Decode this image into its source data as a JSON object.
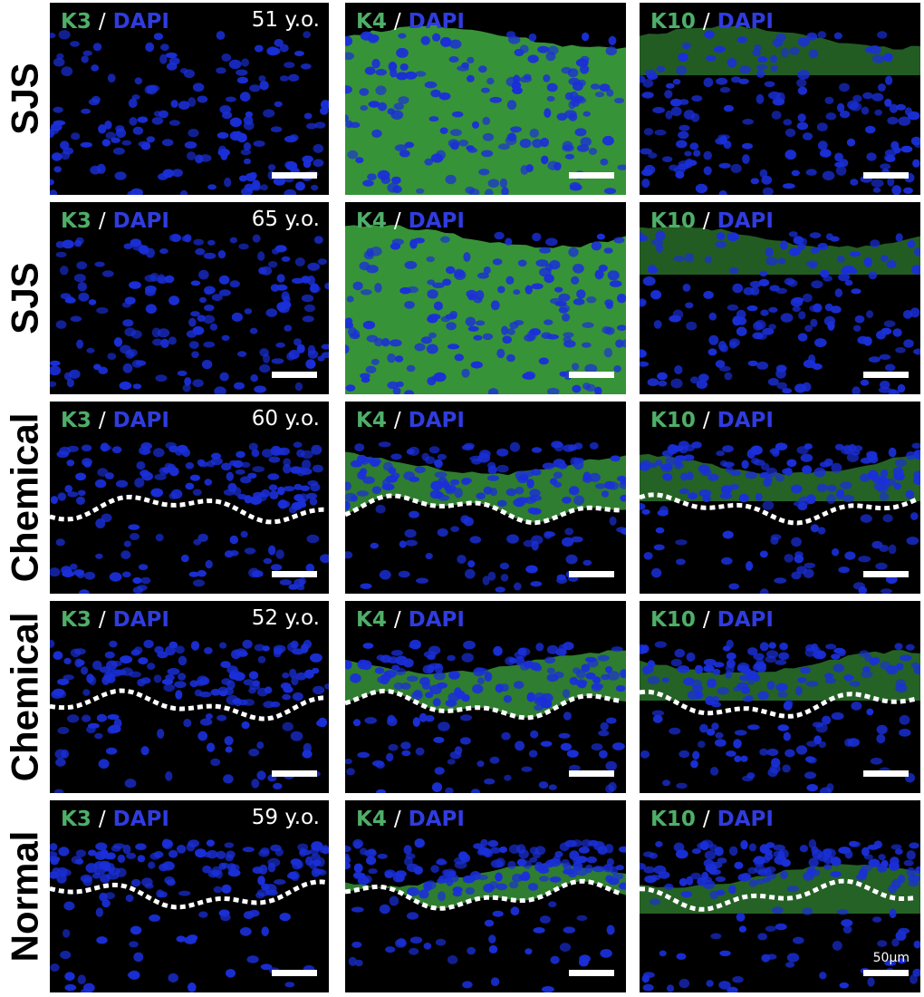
{
  "rows": [
    {
      "label": "SJS",
      "age": "51 y.o.",
      "layer": "none"
    },
    {
      "label": "SJS",
      "age": "65 y.o.",
      "layer": "none"
    },
    {
      "label": "Chemical",
      "age": "60 y.o.",
      "layer": "dashed"
    },
    {
      "label": "Chemical",
      "age": "52 y.o.",
      "layer": "dashed"
    },
    {
      "label": "Normal",
      "age": "59 y.o.",
      "layer": "dashed"
    }
  ],
  "columns": [
    {
      "marker": "K3",
      "separator": "/",
      "counterstain": "DAPI"
    },
    {
      "marker": "K4",
      "separator": "/",
      "counterstain": "DAPI"
    },
    {
      "marker": "K10",
      "separator": "/",
      "counterstain": "DAPI"
    }
  ],
  "scale_bar_label": "50μm",
  "colors": {
    "marker_label": "#4fae68",
    "dapi_label": "#2f3cdf",
    "nuclei": "#1a2fd8",
    "keratin": "#4fd150"
  }
}
